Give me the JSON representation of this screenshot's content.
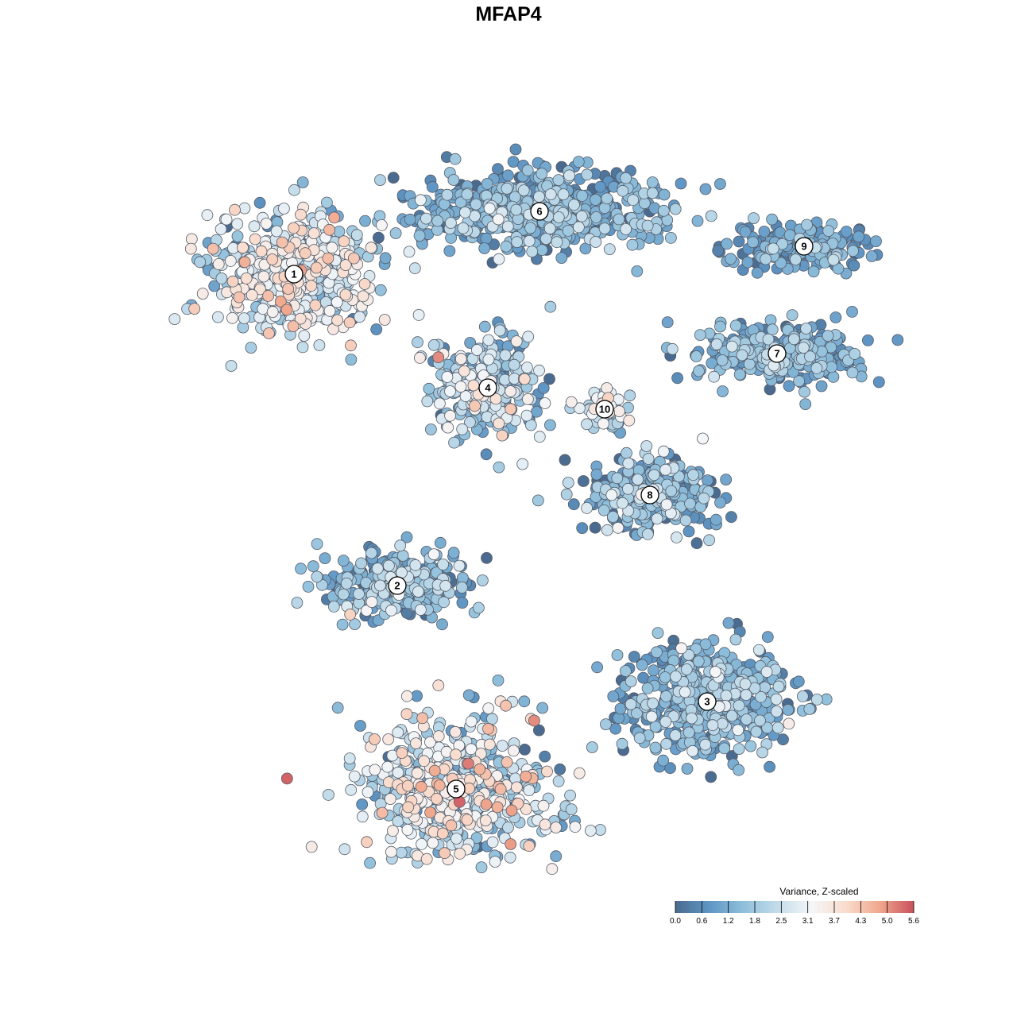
{
  "title": "MFAP4",
  "chart_data": {
    "type": "scatter",
    "title": "MFAP4",
    "xlabel": "",
    "ylabel": "",
    "axes_visible": false,
    "grid": false,
    "color_scale": {
      "title": "Variance, Z-scaled",
      "min": 0.0,
      "max": 5.6,
      "ticks": [
        "0.0",
        "0.6",
        "1.2",
        "1.8",
        "2.5",
        "3.1",
        "3.7",
        "4.3",
        "5.0",
        "5.6"
      ],
      "colors": [
        "#4a6b8f",
        "#5f96c5",
        "#8fbfdb",
        "#c3dcea",
        "#f4f6f8",
        "#f9dccd",
        "#f0a88e",
        "#c9505d"
      ],
      "placement": "bottom-right"
    },
    "clusters": [
      {
        "label": "1",
        "spread": [
          95,
          70
        ],
        "mean_value": 2.6,
        "value_sd": 0.9
      },
      {
        "label": "2",
        "spread": [
          90,
          40
        ],
        "mean_value": 1.4,
        "value_sd": 0.8
      },
      {
        "label": "3",
        "spread": [
          95,
          60
        ],
        "mean_value": 1.3,
        "value_sd": 0.7
      },
      {
        "label": "4",
        "spread": [
          60,
          60
        ],
        "mean_value": 1.8,
        "value_sd": 0.9
      },
      {
        "label": "5",
        "spread": [
          110,
          80
        ],
        "mean_value": 2.5,
        "value_sd": 1.1
      },
      {
        "label": "6",
        "spread": [
          150,
          45
        ],
        "mean_value": 1.2,
        "value_sd": 0.7
      },
      {
        "label": "7",
        "spread": [
          90,
          35
        ],
        "mean_value": 1.3,
        "value_sd": 0.6
      },
      {
        "label": "8",
        "spread": [
          80,
          40
        ],
        "mean_value": 1.3,
        "value_sd": 0.9
      },
      {
        "label": "9",
        "spread": [
          80,
          25
        ],
        "mean_value": 1.1,
        "value_sd": 0.5
      },
      {
        "label": "10",
        "spread": [
          25,
          25
        ],
        "mean_value": 2.4,
        "value_sd": 0.8
      }
    ]
  }
}
